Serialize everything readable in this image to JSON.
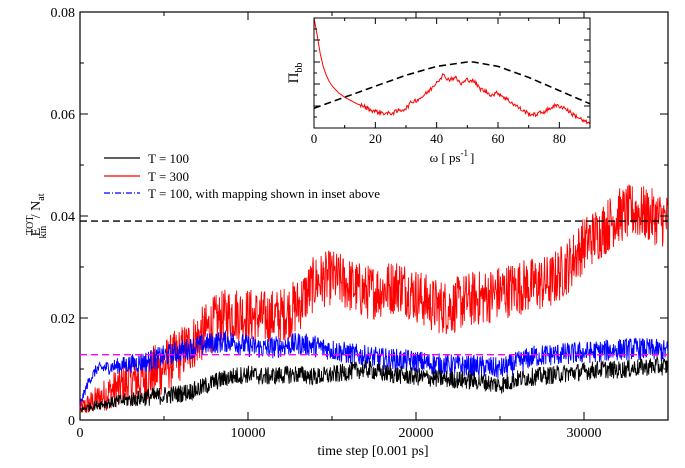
{
  "chart_data": [
    {
      "type": "line",
      "title": "",
      "xlabel": "time step [0.001 ps]",
      "ylabel_main": "E",
      "ylabel_sup": "TOT",
      "ylabel_sub": "kin",
      "ylabel_div": " / N",
      "ylabel_sub2": "at",
      "xlim": [
        0,
        35000
      ],
      "ylim": [
        0,
        0.08
      ],
      "xticks": [
        0,
        10000,
        20000,
        30000
      ],
      "xtick_labels": [
        "0",
        "10000",
        "20000",
        "30000"
      ],
      "yticks": [
        0,
        0.02,
        0.04,
        0.06,
        0.08
      ],
      "ytick_labels": [
        "0",
        "0.02",
        "0.04",
        "0.06",
        "0.08"
      ],
      "grid": false,
      "legend_position": "middle-left",
      "series": [
        {
          "name": "T = 100",
          "color": "#000000",
          "style": "solid-noisy",
          "x": [
            0,
            500,
            1000,
            2000,
            3000,
            4000,
            5000,
            6000,
            7000,
            8000,
            9000,
            10000,
            11000,
            12000,
            13000,
            14000,
            15000,
            16000,
            17000,
            18000,
            19000,
            20000,
            21000,
            22000,
            23000,
            24000,
            25000,
            26000,
            27000,
            28000,
            29000,
            30000,
            31000,
            32000,
            33000,
            34000,
            35000
          ],
          "y": [
            0.002,
            0.0025,
            0.003,
            0.0035,
            0.004,
            0.0045,
            0.0048,
            0.0052,
            0.006,
            0.0075,
            0.0085,
            0.009,
            0.0085,
            0.0088,
            0.009,
            0.0085,
            0.0088,
            0.0095,
            0.01,
            0.0092,
            0.0088,
            0.0085,
            0.0082,
            0.008,
            0.0078,
            0.0075,
            0.0068,
            0.008,
            0.0085,
            0.0088,
            0.0092,
            0.0095,
            0.01,
            0.0098,
            0.0102,
            0.0105,
            0.0105
          ],
          "noise": 0.0018
        },
        {
          "name": "T = 300",
          "color": "#ff0000",
          "style": "solid-noisy",
          "x": [
            0,
            500,
            1000,
            2000,
            3000,
            4000,
            5000,
            6000,
            7000,
            8000,
            9000,
            10000,
            11000,
            12000,
            13000,
            14000,
            15000,
            16000,
            17000,
            18000,
            19000,
            20000,
            21000,
            22000,
            23000,
            24000,
            25000,
            26000,
            27000,
            28000,
            29000,
            30000,
            31000,
            32000,
            33000,
            34000,
            35000
          ],
          "y": [
            0.002,
            0.003,
            0.004,
            0.006,
            0.0075,
            0.0085,
            0.0105,
            0.013,
            0.016,
            0.019,
            0.021,
            0.0205,
            0.02,
            0.0205,
            0.0225,
            0.027,
            0.028,
            0.0265,
            0.025,
            0.0255,
            0.0265,
            0.0245,
            0.0225,
            0.022,
            0.0235,
            0.024,
            0.025,
            0.026,
            0.0265,
            0.027,
            0.03,
            0.0345,
            0.037,
            0.04,
            0.041,
            0.04,
            0.039
          ],
          "noise": 0.0055
        },
        {
          "name": "T = 100, with mapping shown in inset above",
          "color": "#0000ff",
          "style": "dash-dot-noisy",
          "x": [
            0,
            500,
            1000,
            2000,
            3000,
            4000,
            5000,
            6000,
            7000,
            8000,
            9000,
            10000,
            11000,
            12000,
            13000,
            14000,
            15000,
            16000,
            17000,
            18000,
            19000,
            20000,
            21000,
            22000,
            23000,
            24000,
            25000,
            26000,
            27000,
            28000,
            29000,
            30000,
            31000,
            32000,
            33000,
            34000,
            35000
          ],
          "y": [
            0.003,
            0.0075,
            0.01,
            0.0105,
            0.011,
            0.0115,
            0.0125,
            0.0135,
            0.0145,
            0.0152,
            0.0155,
            0.0145,
            0.014,
            0.0145,
            0.015,
            0.0145,
            0.0138,
            0.013,
            0.0125,
            0.012,
            0.0118,
            0.0115,
            0.011,
            0.0108,
            0.0105,
            0.0105,
            0.01,
            0.0112,
            0.0125,
            0.0128,
            0.013,
            0.0132,
            0.0135,
            0.0138,
            0.014,
            0.0138,
            0.0135
          ],
          "noise": 0.0022
        }
      ],
      "reference_lines": [
        {
          "color": "#000000",
          "style": "dashed",
          "y": 0.039,
          "x_range": [
            0,
            35000
          ]
        },
        {
          "color": "#ff00ff",
          "style": "dashed",
          "y": 0.0128,
          "x_range": [
            0,
            35000
          ]
        }
      ]
    },
    {
      "type": "line",
      "title": "",
      "xlabel_main": "ω [ ps",
      "xlabel_sup": "-1",
      "xlabel_end": "]",
      "ylabel_main": "Π",
      "ylabel_sub": "bb",
      "xlim": [
        0,
        90
      ],
      "xticks": [
        0,
        20,
        40,
        60,
        80
      ],
      "xtick_labels": [
        "0",
        "20",
        "40",
        "60",
        "80"
      ],
      "ylim": [
        0,
        1
      ],
      "ytick_labels": [],
      "grid": false,
      "series": [
        {
          "color": "#ff0000",
          "style": "solid",
          "x": [
            0,
            1,
            2,
            3,
            4,
            5,
            6,
            8,
            10,
            12,
            14,
            16,
            18,
            20,
            22,
            24,
            26,
            28,
            30,
            32,
            34,
            36,
            38,
            40,
            42,
            44,
            46,
            48,
            50,
            52,
            54,
            56,
            58,
            60,
            62,
            64,
            66,
            68,
            70,
            72,
            74,
            76,
            78,
            80,
            82,
            84,
            86,
            88,
            90
          ],
          "y": [
            1.0,
            0.85,
            0.68,
            0.56,
            0.48,
            0.42,
            0.38,
            0.32,
            0.28,
            0.25,
            0.22,
            0.2,
            0.17,
            0.15,
            0.14,
            0.13,
            0.14,
            0.16,
            0.18,
            0.24,
            0.26,
            0.3,
            0.35,
            0.42,
            0.48,
            0.44,
            0.46,
            0.4,
            0.44,
            0.43,
            0.36,
            0.33,
            0.3,
            0.32,
            0.28,
            0.24,
            0.2,
            0.16,
            0.13,
            0.12,
            0.14,
            0.16,
            0.2,
            0.2,
            0.18,
            0.13,
            0.1,
            0.06,
            0.04
          ]
        },
        {
          "color": "#000000",
          "style": "dashed",
          "x": [
            0,
            10,
            20,
            30,
            40,
            50,
            52,
            60,
            70,
            80,
            90
          ],
          "y": [
            0.18,
            0.28,
            0.38,
            0.48,
            0.56,
            0.6,
            0.6,
            0.56,
            0.46,
            0.34,
            0.22
          ]
        }
      ]
    }
  ]
}
